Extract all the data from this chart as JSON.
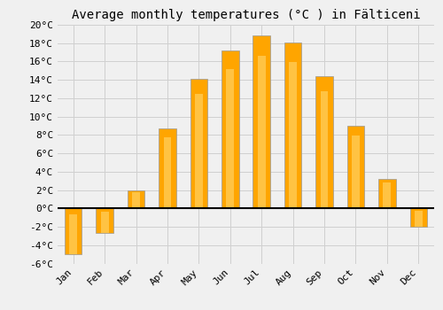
{
  "months": [
    "Jan",
    "Feb",
    "Mar",
    "Apr",
    "May",
    "Jun",
    "Jul",
    "Aug",
    "Sep",
    "Oct",
    "Nov",
    "Dec"
  ],
  "temperatures": [
    -5.0,
    -2.7,
    2.0,
    8.7,
    14.1,
    17.2,
    18.8,
    18.1,
    14.4,
    9.0,
    3.2,
    -2.0
  ],
  "bar_color_main": "#FFA500",
  "bar_color_light": "#FFD060",
  "bar_edge_color": "#999999",
  "title": "Average monthly temperatures (°C ) in Fälticeni",
  "ylim": [
    -6,
    20
  ],
  "yticks": [
    -6,
    -4,
    -2,
    0,
    2,
    4,
    6,
    8,
    10,
    12,
    14,
    16,
    18,
    20
  ],
  "ytick_labels": [
    "-6°C",
    "-4°C",
    "-2°C",
    "0°C",
    "2°C",
    "4°C",
    "6°C",
    "8°C",
    "10°C",
    "12°C",
    "14°C",
    "16°C",
    "18°C",
    "20°C"
  ],
  "bg_color": "#f0f0f0",
  "grid_color": "#d0d0d0",
  "title_fontsize": 10,
  "tick_fontsize": 8,
  "bar_width": 0.55
}
